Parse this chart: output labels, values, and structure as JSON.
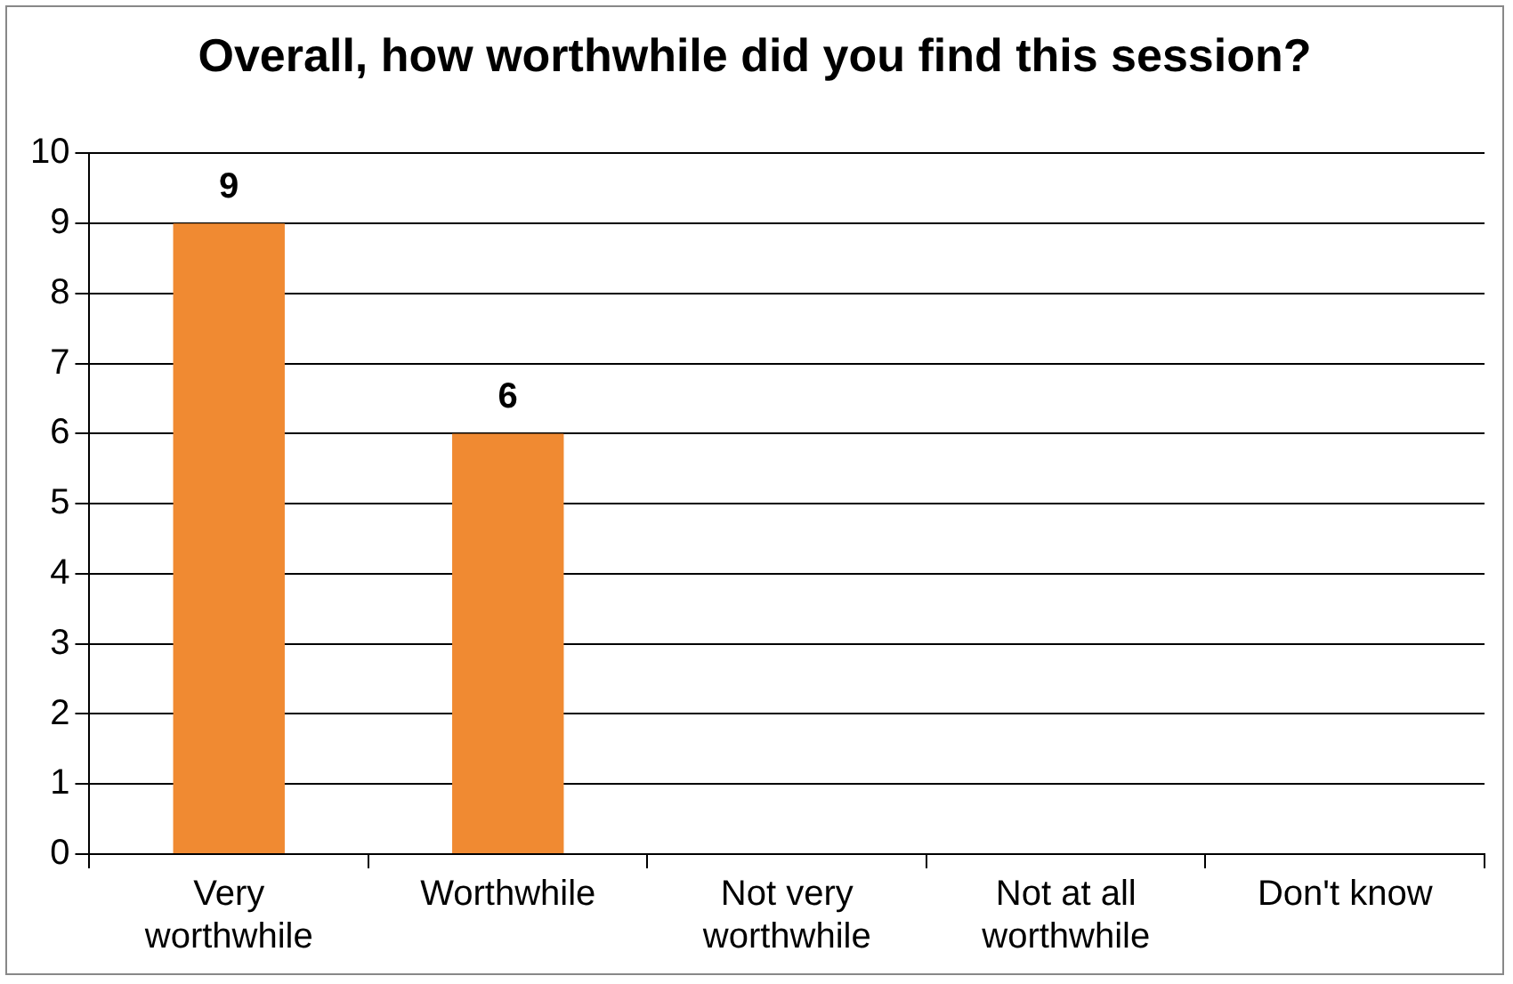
{
  "chart_data": {
    "type": "bar",
    "title": "Overall, how worthwhile did you find this session?",
    "categories": [
      "Very worthwhile",
      "Worthwhile",
      "Not very worthwhile",
      "Not at all worthwhile",
      "Don't know"
    ],
    "values": [
      9,
      6,
      0,
      0,
      0
    ],
    "value_labels": [
      "9",
      "6",
      null,
      null,
      null
    ],
    "color": "#f08a32",
    "ylim": [
      0,
      10
    ],
    "yticks": [
      0,
      1,
      2,
      3,
      4,
      5,
      6,
      7,
      8,
      9,
      10
    ],
    "grid": "y",
    "legend": false
  }
}
